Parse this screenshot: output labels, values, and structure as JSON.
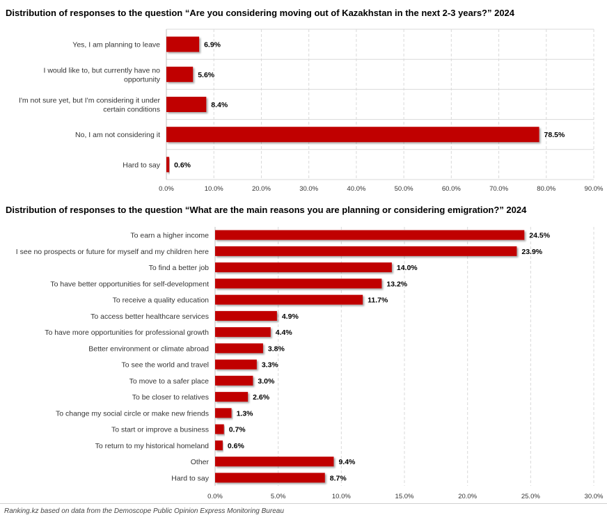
{
  "chart_data": [
    {
      "type": "bar",
      "orientation": "horizontal",
      "title": "Distribution of responses to the question “Are you considering moving out of Kazakhstan in the next 2-3 years?” 2024",
      "categories": [
        [
          "Yes, I am planning to leave"
        ],
        [
          "I would like to, but currently have no",
          "opportunity"
        ],
        [
          "I'm not sure yet, but I'm considering it under",
          "certain conditions"
        ],
        [
          "No, I am not considering it"
        ],
        [
          "Hard to say"
        ]
      ],
      "values": [
        6.9,
        5.6,
        8.4,
        78.5,
        0.6
      ],
      "value_labels": [
        "6.9%",
        "5.6%",
        "8.4%",
        "78.5%",
        "0.6%"
      ],
      "xlim": [
        0,
        90
      ],
      "ticks": [
        "0.0%",
        "10.0%",
        "20.0%",
        "30.0%",
        "40.0%",
        "50.0%",
        "60.0%",
        "70.0%",
        "80.0%",
        "90.0%"
      ],
      "grid": true,
      "bar_color": "#c00000"
    },
    {
      "type": "bar",
      "orientation": "horizontal",
      "title": "Distribution of responses to the question “What are the main reasons you are planning or considering emigration?” 2024",
      "categories": [
        [
          "To earn a higher income"
        ],
        [
          "I see no prospects or future for myself and my children here"
        ],
        [
          "To find a better job"
        ],
        [
          "To have better opportunities for self-development"
        ],
        [
          "To receive a quality education"
        ],
        [
          "To access better healthcare services"
        ],
        [
          "To have more opportunities for professional growth"
        ],
        [
          "Better environment or climate abroad"
        ],
        [
          "To see the world and travel"
        ],
        [
          "To move to a safer place"
        ],
        [
          "To be closer to relatives"
        ],
        [
          "To change my social circle or make new friends"
        ],
        [
          "To start or improve a business"
        ],
        [
          "To return to my historical homeland"
        ],
        [
          "Other"
        ],
        [
          "Hard to say"
        ]
      ],
      "values": [
        24.5,
        23.9,
        14.0,
        13.2,
        11.7,
        4.9,
        4.4,
        3.8,
        3.3,
        3.0,
        2.6,
        1.3,
        0.7,
        0.6,
        9.4,
        8.7
      ],
      "value_labels": [
        "24.5%",
        "23.9%",
        "14.0%",
        "13.2%",
        "11.7%",
        "4.9%",
        "4.4%",
        "3.8%",
        "3.3%",
        "3.0%",
        "2.6%",
        "1.3%",
        "0.7%",
        "0.6%",
        "9.4%",
        "8.7%"
      ],
      "xlim": [
        0,
        30
      ],
      "ticks": [
        "0.0%",
        "5.0%",
        "10.0%",
        "15.0%",
        "20.0%",
        "25.0%",
        "30.0%"
      ],
      "grid": true,
      "bar_color": "#c00000"
    }
  ],
  "source": "Ranking.kz based on data from the Demoscope Public Opinion Express Monitoring Bureau"
}
